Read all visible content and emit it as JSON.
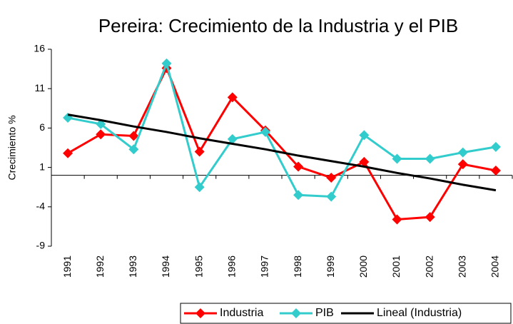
{
  "chart_data": {
    "type": "line",
    "title": "Pereira: Crecimiento de la Industria y el PIB",
    "y_label": "Crecimiento %",
    "categories": [
      "1991",
      "1992",
      "1993",
      "1994",
      "1995",
      "1996",
      "1997",
      "1998",
      "1999",
      "2000",
      "2001",
      "2002",
      "2003",
      "2004"
    ],
    "series": [
      {
        "name": "Industria",
        "color": "#ff0000",
        "marker": "diamond",
        "values": [
          2.8,
          5.2,
          5.0,
          13.6,
          3.0,
          9.9,
          5.7,
          1.1,
          -0.3,
          1.7,
          -5.6,
          -5.3,
          1.4,
          0.6
        ]
      },
      {
        "name": "PIB",
        "color": "#33cccc",
        "marker": "diamond",
        "values": [
          7.3,
          6.5,
          3.3,
          14.2,
          -1.5,
          4.6,
          5.5,
          -2.5,
          -2.7,
          5.1,
          2.1,
          2.1,
          2.9,
          3.6
        ]
      },
      {
        "name": "Lineal (Industria)",
        "color": "#000000",
        "marker": "none",
        "values": [
          7.7,
          7.0,
          6.2,
          5.5,
          4.7,
          4.0,
          3.3,
          2.5,
          1.8,
          1.1,
          0.3,
          -0.4,
          -1.2,
          -1.9
        ]
      }
    ],
    "ylim": [
      -9,
      16
    ],
    "yticks": [
      -9,
      -4,
      1,
      6,
      11,
      16
    ],
    "grid": false,
    "legend": "bottom"
  }
}
